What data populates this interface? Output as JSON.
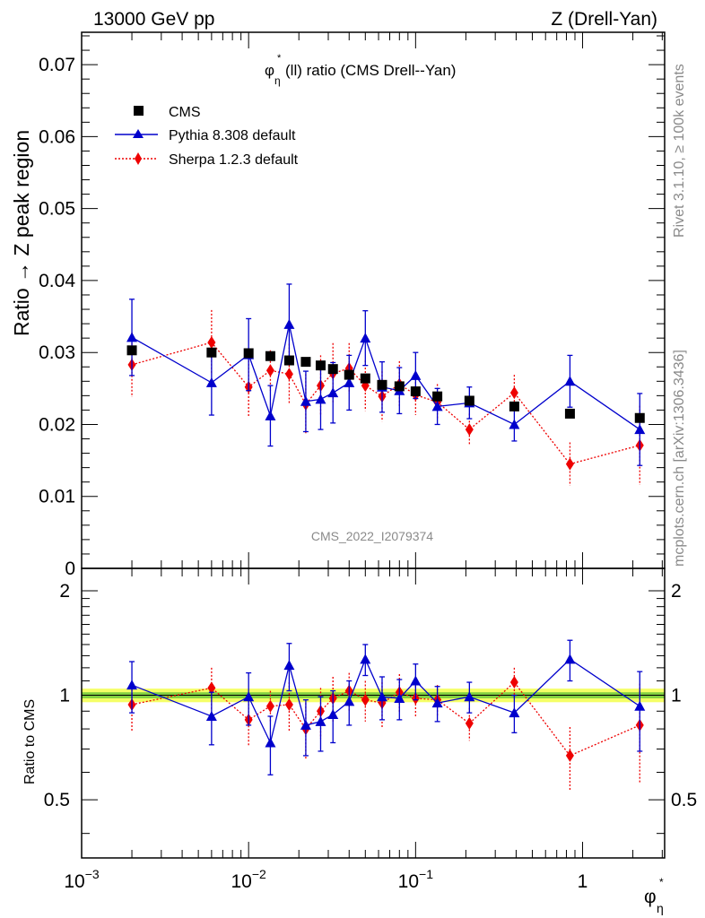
{
  "header": {
    "left": "13000 GeV pp",
    "right": "Z (Drell-Yan)"
  },
  "plot_title": {
    "phi": "φ",
    "star": "*",
    "eta": "η",
    "rest": "(ll) ratio (CMS Drell--Yan)"
  },
  "side_text": {
    "rivet": "Rivet 3.1.10, ≥ 100k events",
    "mcplots": "mcplots.cern.ch [arXiv:1306.3436]"
  },
  "watermark": "CMS_2022_I2079374",
  "xlabel": {
    "phi": "φ",
    "star": "*",
    "eta": "η"
  },
  "colors": {
    "cms": "#000000",
    "pythia": "#0000cc",
    "sherpa": "#ee0000",
    "band_green": "#22aa22",
    "band_yellow": "#f5ff66"
  },
  "chart_data": [
    {
      "type": "scatter",
      "panel": "main",
      "ylabel": "Ratio → Z peak region",
      "xscale": "log",
      "xlim": [
        0.001,
        3.1
      ],
      "ylim": [
        0,
        0.0745
      ],
      "yticks": [
        0,
        0.01,
        0.02,
        0.03,
        0.04,
        0.05,
        0.06,
        0.07
      ],
      "ytick_labels": [
        "0",
        "0.01",
        "0.02",
        "0.03",
        "0.04",
        "0.05",
        "0.06",
        "0.07"
      ],
      "xticks": [
        0.001,
        0.01,
        0.1,
        1
      ],
      "xtick_labels": [
        {
          "base": "10",
          "exp": "−3"
        },
        {
          "base": "10",
          "exp": "−2"
        },
        {
          "base": "10",
          "exp": "−1"
        },
        {
          "base": "1",
          "exp": ""
        }
      ],
      "legend": {
        "position": "top-left",
        "entries": [
          "CMS",
          "Pythia 8.308 default",
          "Sherpa 1.2.3 default"
        ]
      },
      "x": [
        0.002,
        0.006,
        0.01,
        0.0135,
        0.0175,
        0.022,
        0.027,
        0.032,
        0.04,
        0.05,
        0.063,
        0.08,
        0.1,
        0.135,
        0.21,
        0.39,
        0.84,
        2.2
      ],
      "series": [
        {
          "name": "CMS",
          "marker": "square",
          "values": [
            0.0303,
            0.03,
            0.0299,
            0.0295,
            0.0289,
            0.0287,
            0.0282,
            0.0277,
            0.0269,
            0.0264,
            0.0255,
            0.0253,
            0.0246,
            0.0239,
            0.0233,
            0.0225,
            0.0215,
            0.0209
          ],
          "errors": [
            0.0006,
            0.0005,
            0.0005,
            0.0005,
            0.0005,
            0.0004,
            0.0004,
            0.0004,
            0.0004,
            0.0004,
            0.0004,
            0.0004,
            0.0004,
            0.0004,
            0.0004,
            0.0004,
            0.0004,
            0.0004
          ]
        },
        {
          "name": "Pythia 8.308 default",
          "marker": "triangle",
          "line": "solid",
          "values": [
            0.0321,
            0.0258,
            0.0297,
            0.0212,
            0.0339,
            0.0232,
            0.0235,
            0.0244,
            0.0258,
            0.032,
            0.0252,
            0.0247,
            0.0268,
            0.0225,
            0.023,
            0.02,
            0.026,
            0.0193
          ],
          "errors": [
            0.0053,
            0.0045,
            0.005,
            0.0042,
            0.0056,
            0.0042,
            0.0042,
            0.0042,
            0.0038,
            0.0038,
            0.0035,
            0.0032,
            0.0032,
            0.0025,
            0.0022,
            0.0023,
            0.0036,
            0.005
          ]
        },
        {
          "name": "Sherpa 1.2.3 default",
          "marker": "diamond",
          "line": "dotted",
          "values": [
            0.0283,
            0.0314,
            0.0252,
            0.0275,
            0.027,
            0.0228,
            0.0254,
            0.0271,
            0.0278,
            0.0254,
            0.0239,
            0.0256,
            0.0241,
            0.0231,
            0.0193,
            0.0244,
            0.0145,
            0.0171
          ],
          "errors": [
            0.0045,
            0.0045,
            0.0042,
            0.0028,
            0.0042,
            0.0042,
            0.0042,
            0.0042,
            0.0035,
            0.0035,
            0.0035,
            0.0032,
            0.0028,
            0.0025,
            0.0022,
            0.0025,
            0.003,
            0.0055
          ]
        }
      ]
    },
    {
      "type": "scatter",
      "panel": "ratio",
      "ylabel": "Ratio to CMS",
      "xscale": "log",
      "xlim": [
        0.001,
        3.1
      ],
      "ylim": [
        0.34,
        2.32
      ],
      "yticks": [
        0.5,
        1,
        2
      ],
      "ytick_labels": [
        "0.5",
        "1",
        "2"
      ],
      "x": [
        0.002,
        0.006,
        0.01,
        0.0135,
        0.0175,
        0.022,
        0.027,
        0.032,
        0.04,
        0.05,
        0.063,
        0.08,
        0.1,
        0.135,
        0.21,
        0.39,
        0.84,
        2.2
      ],
      "band": {
        "green": [
          0.98,
          1.02
        ],
        "yellow": [
          0.955,
          1.045
        ]
      },
      "series": [
        {
          "name": "Pythia 8.308 default",
          "values": [
            1.07,
            0.87,
            0.99,
            0.73,
            1.22,
            0.82,
            0.84,
            0.88,
            0.96,
            1.27,
            0.99,
            0.98,
            1.1,
            0.95,
            0.99,
            0.89,
            1.27,
            0.93
          ],
          "errors": [
            0.18,
            0.15,
            0.17,
            0.14,
            0.19,
            0.15,
            0.15,
            0.15,
            0.14,
            0.13,
            0.14,
            0.13,
            0.13,
            0.11,
            0.1,
            0.11,
            0.17,
            0.24
          ]
        },
        {
          "name": "Sherpa 1.2.3 default",
          "values": [
            0.94,
            1.05,
            0.85,
            0.93,
            0.94,
            0.8,
            0.9,
            0.98,
            1.03,
            0.97,
            0.95,
            1.02,
            0.98,
            0.97,
            0.83,
            1.09,
            0.67,
            0.82
          ],
          "errors": [
            0.15,
            0.15,
            0.14,
            0.1,
            0.15,
            0.15,
            0.15,
            0.15,
            0.13,
            0.13,
            0.14,
            0.13,
            0.11,
            0.1,
            0.09,
            0.11,
            0.14,
            0.26
          ]
        }
      ]
    }
  ]
}
